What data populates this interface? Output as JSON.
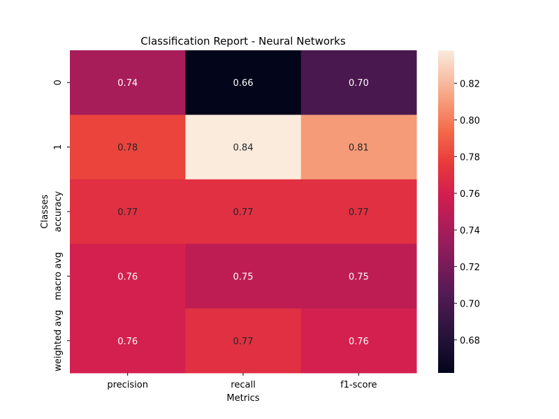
{
  "chart_data": {
    "type": "heatmap",
    "title": "Classification Report - Neural Networks",
    "xlabel": "Metrics",
    "ylabel": "Classes",
    "x_categories": [
      "precision",
      "recall",
      "f1-score"
    ],
    "y_categories": [
      "0",
      "1",
      "accuracy",
      "macro avg",
      "weighted avg"
    ],
    "values": [
      [
        0.74,
        0.66,
        0.7
      ],
      [
        0.78,
        0.84,
        0.81
      ],
      [
        0.77,
        0.77,
        0.77
      ],
      [
        0.76,
        0.75,
        0.75
      ],
      [
        0.76,
        0.77,
        0.76
      ]
    ],
    "cell_labels": [
      [
        "0.74",
        "0.66",
        "0.70"
      ],
      [
        "0.78",
        "0.84",
        "0.81"
      ],
      [
        "0.77",
        "0.77",
        "0.77"
      ],
      [
        "0.76",
        "0.75",
        "0.75"
      ],
      [
        "0.76",
        "0.77",
        "0.76"
      ]
    ],
    "colorbar": {
      "range": [
        0.662,
        0.838
      ],
      "ticks": [
        0.68,
        0.7,
        0.72,
        0.74,
        0.76,
        0.78,
        0.8,
        0.82
      ],
      "tick_labels": [
        "0.68",
        "0.70",
        "0.72",
        "0.74",
        "0.76",
        "0.78",
        "0.80",
        "0.82"
      ],
      "colormap": "rocket"
    },
    "grid": false
  }
}
